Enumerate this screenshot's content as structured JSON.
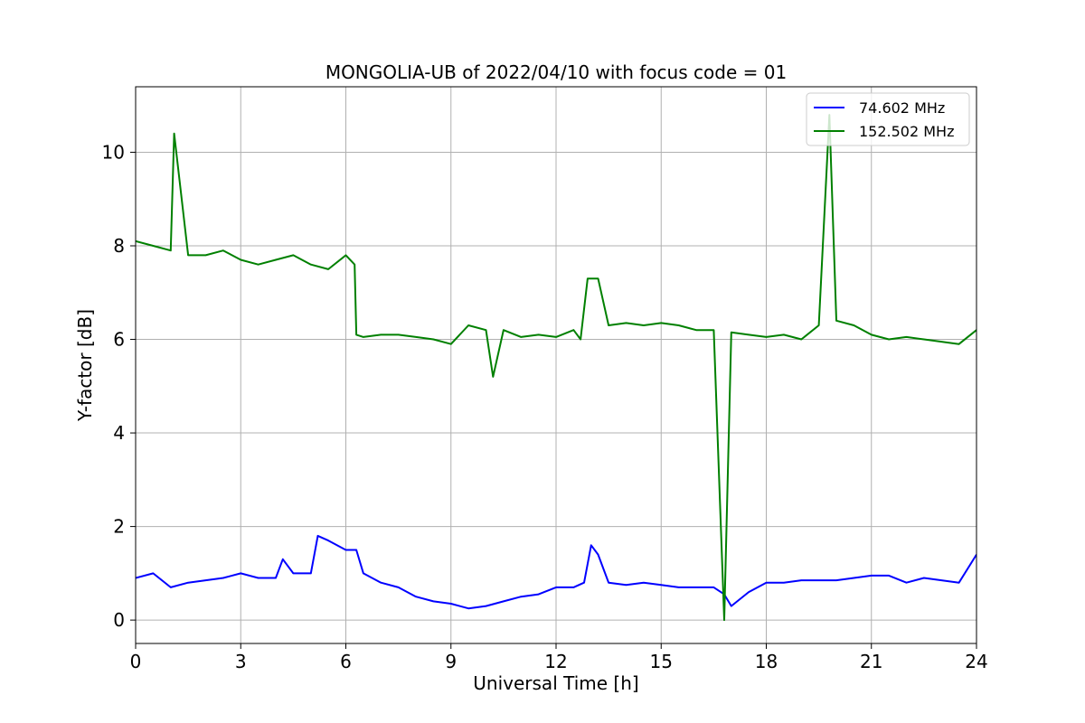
{
  "chart_data": {
    "type": "line",
    "title": "MONGOLIA-UB of 2022/04/10 with focus code = 01",
    "xlabel": "Universal Time [h]",
    "ylabel": "Y-factor [dB]",
    "xlim": [
      0,
      24
    ],
    "ylim": [
      -0.5,
      11.4
    ],
    "x_ticks": [
      0,
      3,
      6,
      9,
      12,
      15,
      18,
      21,
      24
    ],
    "y_ticks": [
      0,
      2,
      4,
      6,
      8,
      10
    ],
    "grid": true,
    "legend_position": "top-right",
    "series": [
      {
        "name": "74.602 MHz",
        "color": "#0000ff",
        "x": [
          0,
          0.5,
          1,
          1.5,
          2,
          2.5,
          3,
          3.5,
          4,
          4.2,
          4.5,
          5,
          5.2,
          5.5,
          6,
          6.3,
          6.5,
          7,
          7.5,
          8,
          8.5,
          9,
          9.5,
          10,
          10.5,
          11,
          11.5,
          12,
          12.5,
          12.8,
          13,
          13.2,
          13.5,
          14,
          14.5,
          15,
          15.5,
          16,
          16.5,
          16.8,
          17,
          17.5,
          18,
          18.5,
          19,
          19.5,
          20,
          20.5,
          21,
          21.5,
          22,
          22.5,
          23,
          23.5,
          24
        ],
        "y": [
          0.9,
          1.0,
          0.7,
          0.8,
          0.85,
          0.9,
          1.0,
          0.9,
          0.9,
          1.3,
          1.0,
          1.0,
          1.8,
          1.7,
          1.5,
          1.5,
          1.0,
          0.8,
          0.7,
          0.5,
          0.4,
          0.35,
          0.25,
          0.3,
          0.4,
          0.5,
          0.55,
          0.7,
          0.7,
          0.8,
          1.6,
          1.4,
          0.8,
          0.75,
          0.8,
          0.75,
          0.7,
          0.7,
          0.7,
          0.55,
          0.3,
          0.6,
          0.8,
          0.8,
          0.85,
          0.85,
          0.85,
          0.9,
          0.95,
          0.95,
          0.8,
          0.9,
          0.85,
          0.8,
          1.4
        ]
      },
      {
        "name": "152.502 MHz",
        "color": "#008000",
        "x": [
          0,
          0.5,
          1,
          1.1,
          1.5,
          2,
          2.5,
          3,
          3.5,
          4,
          4.5,
          5,
          5.5,
          6,
          6.25,
          6.3,
          6.5,
          7,
          7.5,
          8,
          8.5,
          9,
          9.5,
          10,
          10.2,
          10.5,
          11,
          11.5,
          12,
          12.5,
          12.7,
          12.9,
          13.2,
          13.5,
          14,
          14.5,
          15,
          15.5,
          16,
          16.5,
          16.8,
          17,
          17.5,
          18,
          18.5,
          19,
          19.5,
          19.8,
          20,
          20.5,
          21,
          21.5,
          22,
          22.5,
          23,
          23.5,
          24
        ],
        "y": [
          8.1,
          8.0,
          7.9,
          10.4,
          7.8,
          7.8,
          7.9,
          7.7,
          7.6,
          7.7,
          7.8,
          7.6,
          7.5,
          7.8,
          7.6,
          6.1,
          6.05,
          6.1,
          6.1,
          6.05,
          6.0,
          5.9,
          6.3,
          6.2,
          5.2,
          6.2,
          6.05,
          6.1,
          6.05,
          6.2,
          6.0,
          7.3,
          7.3,
          6.3,
          6.35,
          6.3,
          6.35,
          6.3,
          6.2,
          6.2,
          0.0,
          6.15,
          6.1,
          6.05,
          6.1,
          6.0,
          6.3,
          10.8,
          6.4,
          6.3,
          6.1,
          6.0,
          6.05,
          6.0,
          5.95,
          5.9,
          6.2
        ]
      }
    ]
  }
}
